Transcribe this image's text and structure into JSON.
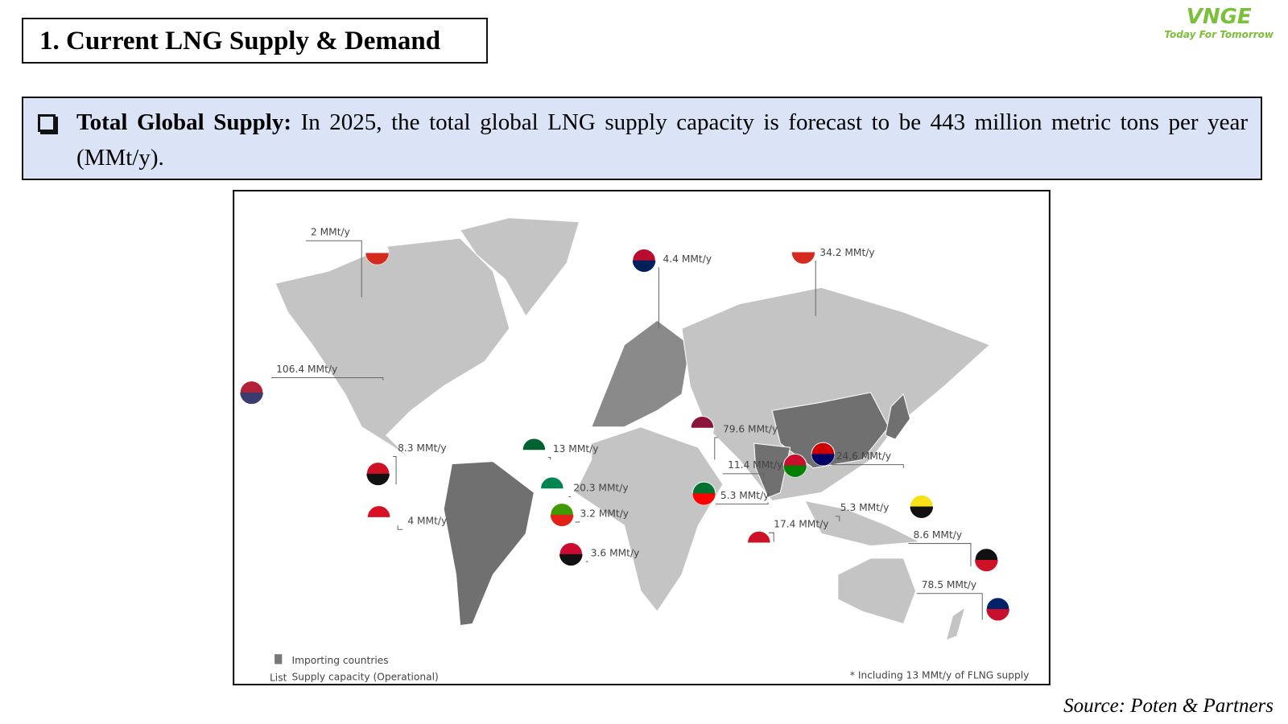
{
  "header": {
    "title": "1. Current LNG Supply & Demand",
    "logo": "VNGE",
    "tagline": "Today For Tomorrow"
  },
  "bullet": {
    "label": "Total Global Supply:",
    "text": "In 2025, the total global LNG supply capacity is forecast to be 443 million metric tons per year (MMt/y)."
  },
  "map": {
    "labels": [
      "2 MMt/y",
      "4.4 MMt/y",
      "34.2 MMt/y",
      "106.4 MMt/y",
      "8.3 MMt/y",
      "4 MMt/y",
      "13 MMt/y",
      "20.3 MMt/y",
      "3.2 MMt/y",
      "3.6 MMt/y",
      "79.6 MMt/y",
      "11.4 MMt/y",
      "24.6 MMt/y",
      "5.3 MMt/y",
      "5.3 MMt/y",
      "17.4 MMt/y",
      "8.6 MMt/y",
      "78.5 MMt/y"
    ],
    "legend": {
      "importing": "Importing countries",
      "list": "List",
      "supply": "Supply capacity (Operational)"
    },
    "footnote": "* Including 13 MMt/y of FLNG supply"
  },
  "source": "Source: Poten & Partners"
}
